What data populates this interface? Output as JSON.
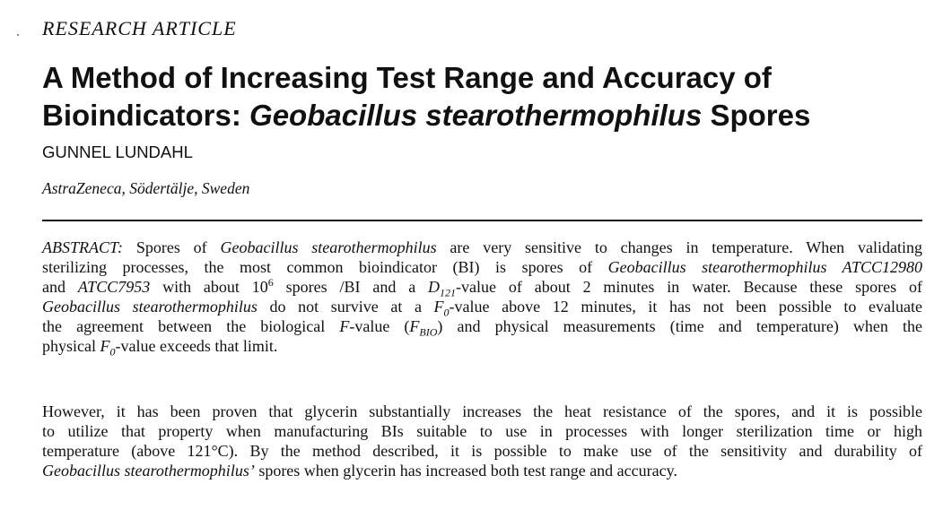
{
  "article": {
    "section_label": "RESEARCH ARTICLE",
    "title_line1": "A Method of Increasing Test Range and Accuracy of",
    "title_line2_plain": "Bioindicators: ",
    "title_line2_italic": "Geobacillus stearothermophilus",
    "title_line2_tail": " Spores",
    "author": "GUNNEL LUNDAHL",
    "affiliation": "AstraZeneca, Södertälje, Sweden"
  },
  "abstract": {
    "label": "ABSTRACT:",
    "p1": {
      "l1_a": " Spores of ",
      "l1_b": "Geobacillus stearothermophilus",
      "l1_c": " are very sensitive to changes in temperature. When validating",
      "l2_a": "sterilizing processes, the most common bioindicator (BI) is spores of ",
      "l2_b": "Geobacillus stearothermophilus ATCC12980",
      "l3_a": "and ",
      "l3_b": "ATCC7953",
      "l3_c": " with about 10",
      "l3_sup": "6",
      "l3_d": " spores /BI and a ",
      "l3_e": "D",
      "l3_sub": "121",
      "l3_f": "-value of about 2 minutes in water. Because these spores of",
      "l4_a": "Geobacillus stearothermophilus",
      "l4_b": " do not survive at a ",
      "l4_c": "F",
      "l4_sub": "0",
      "l4_d": "-value above 12 minutes, it has not been possible to evaluate",
      "l5_a": "the agreement between the biological ",
      "l5_b": "F",
      "l5_c": "-value (",
      "l5_d": "F",
      "l5_sub": "BIO",
      "l5_e": ") and physical measurements (time and temperature) when the",
      "l6_a": "physical ",
      "l6_b": "F",
      "l6_sub": "0",
      "l6_c": "-value exceeds that limit."
    },
    "p2": {
      "l1": "However, it has been proven that glycerin substantially increases the heat resistance of the spores, and it is possible",
      "l2": "to utilize that property when manufacturing BIs suitable to use in processes with longer sterilization time or high",
      "l3": "temperature (above 121°C). By the method described, it is possible to make use of the sensitivity and durability of",
      "l4_a": "Geobacillus stearothermophilus’",
      "l4_b": " spores when glycerin has increased both test range and accuracy."
    }
  }
}
